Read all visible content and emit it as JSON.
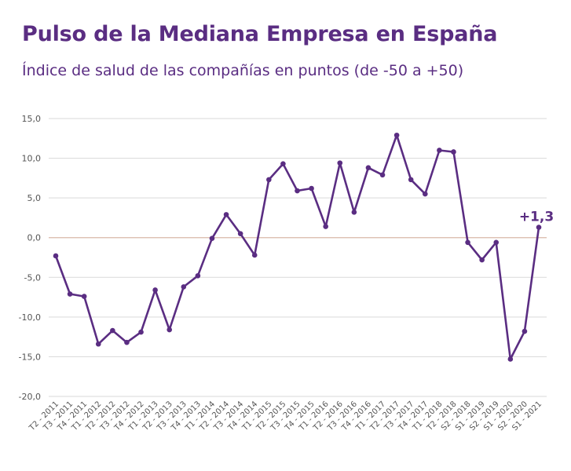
{
  "title": "Pulso de la Mediana Empresa en España",
  "subtitle": "Índice de salud de las compañías en puntos (de -50 a +50)",
  "colors": {
    "line": "#5a2d82",
    "zero_line": "#d9b8a8",
    "grid": "#d9d9d9",
    "title": "#5a2d82"
  },
  "chart_data": {
    "type": "line",
    "title": "Pulso de la Mediana Empresa en España",
    "ylabel": "Índice de salud de las compañías en puntos (de -50 a +50)",
    "xlabel": "",
    "ylim": [
      -20,
      15
    ],
    "yticks": [
      15,
      10,
      5,
      0,
      -5,
      -10,
      -15,
      -20
    ],
    "ytick_labels": [
      "15,0",
      "10,0",
      "5,0",
      "0,0",
      "-5,0",
      "-10,0",
      "-15,0",
      "-20,0"
    ],
    "categories": [
      "T2 - 2011",
      "T3 - 2011",
      "T4 - 2011",
      "T1 - 2012",
      "T2 - 2012",
      "T3 - 2012",
      "T4 - 2012",
      "T1 - 2013",
      "T2 - 2013",
      "T3 - 2013",
      "T4 - 2013",
      "T1 - 2014",
      "T2 - 2014",
      "T3 - 2014",
      "T4 - 2014",
      "T1 - 2015",
      "T2 - 2015",
      "T3 - 2015",
      "T4 - 2015",
      "T1 - 2016",
      "T2 - 2016",
      "T3 - 2016",
      "T4 - 2016",
      "T1 - 2017",
      "T2 - 2017",
      "T3 - 2017",
      "T4 - 2017",
      "T1 - 2018",
      "T2 - 2018",
      "S2 - 2018",
      "S1 - 2019",
      "S2 - 2019",
      "S1 - 2020",
      "S2 - 2020",
      "S1 - 2021"
    ],
    "series": [
      {
        "name": "Índice",
        "values": [
          -2.3,
          -7.1,
          -7.4,
          -13.4,
          -11.7,
          -13.2,
          -11.9,
          -6.6,
          -11.6,
          -6.2,
          -4.8,
          -0.1,
          2.9,
          0.5,
          -2.2,
          7.3,
          9.3,
          5.9,
          6.2,
          1.4,
          9.4,
          3.2,
          8.8,
          7.9,
          12.9,
          7.3,
          5.5,
          11.0,
          10.8,
          -0.6,
          -2.8,
          -0.6,
          -15.3,
          -11.8,
          1.3
        ]
      }
    ],
    "annotations": [
      {
        "category": "S1 - 2021",
        "text": "+1,3"
      }
    ]
  }
}
